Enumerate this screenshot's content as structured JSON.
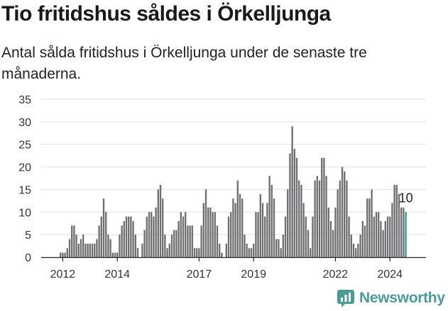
{
  "title": "Tio fritidshus såldes i Örkelljunga",
  "subtitle": "Antal sålda fritidshus i Örkelljunga under de senaste tre månaderna.",
  "brand": {
    "name": "Newsworthy",
    "icon": "newsworthy-logo-icon",
    "color": "#4a9c97"
  },
  "chart_data": {
    "type": "bar",
    "title": "",
    "xlabel": "",
    "ylabel": "",
    "ylim": [
      0,
      35
    ],
    "yticks": [
      0,
      5,
      10,
      15,
      20,
      25,
      30,
      35
    ],
    "grid": true,
    "legend": "none",
    "bar_color": "#6d6c6f",
    "highlight_color": "#2a9d8f",
    "x_start": "2011-12",
    "x_ticks": [
      {
        "label": "2012",
        "month": "2012-01"
      },
      {
        "label": "2014",
        "month": "2014-01"
      },
      {
        "label": "2017",
        "month": "2017-01"
      },
      {
        "label": "2019",
        "month": "2019-01"
      },
      {
        "label": "2022",
        "month": "2022-01"
      },
      {
        "label": "2024",
        "month": "2024-01"
      }
    ],
    "values": [
      1,
      1,
      1,
      2,
      4,
      7,
      7,
      5,
      3,
      4,
      5,
      3,
      3,
      3,
      3,
      3,
      4,
      7,
      9,
      13,
      10,
      5,
      4,
      1,
      1,
      1,
      5,
      7,
      8,
      9,
      9,
      9,
      8,
      5,
      2,
      0,
      3,
      6,
      9,
      10,
      10,
      9,
      11,
      15,
      16,
      13,
      5,
      2,
      3,
      5,
      6,
      6,
      8,
      10,
      9,
      10,
      7,
      7,
      7,
      2,
      2,
      2,
      7,
      12,
      15,
      11,
      11,
      10,
      10,
      7,
      3,
      1,
      0,
      3,
      9,
      10,
      13,
      12,
      17,
      14,
      13,
      5,
      3,
      2,
      2,
      3,
      10,
      10,
      14,
      12,
      9,
      12,
      18,
      16,
      13,
      4,
      4,
      2,
      5,
      9,
      15,
      23,
      29,
      24,
      22,
      17,
      16,
      12,
      9,
      6,
      2,
      9,
      17,
      18,
      17,
      22,
      22,
      18,
      11,
      8,
      6,
      11,
      15,
      17,
      20,
      19,
      17,
      9,
      5,
      3,
      2,
      3,
      5,
      8,
      7,
      13,
      13,
      15,
      9,
      10,
      10,
      8,
      6,
      8,
      9,
      9,
      12,
      16,
      16,
      14,
      11,
      11,
      10
    ],
    "last_value_label": "10"
  }
}
